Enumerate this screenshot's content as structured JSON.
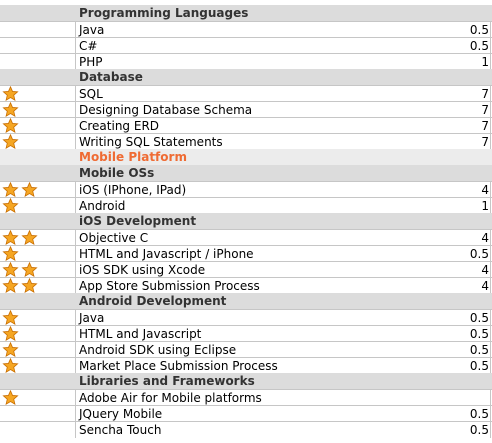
{
  "colors": {
    "section_bg": "#dcdcdc",
    "platform_bg": "#ececec",
    "platform_text": "#ef6b33",
    "star_fill": "#f5a623",
    "star_stroke": "#c96e00",
    "grid_line": "#c6c6c6"
  },
  "rows": [
    {
      "type": "section",
      "label": "Programming Languages",
      "value": "",
      "stars": 0
    },
    {
      "type": "item",
      "label": "Java",
      "value": "0.5",
      "stars": 0
    },
    {
      "type": "item",
      "label": "C#",
      "value": "0.5",
      "stars": 0
    },
    {
      "type": "item",
      "label": "PHP",
      "value": "1",
      "stars": 0
    },
    {
      "type": "section",
      "label": "Database",
      "value": "",
      "stars": 0
    },
    {
      "type": "item",
      "label": "SQL",
      "value": "7",
      "stars": 1
    },
    {
      "type": "item",
      "label": "Designing Database Schema",
      "value": "7",
      "stars": 1
    },
    {
      "type": "item",
      "label": "Creating ERD",
      "value": "7",
      "stars": 1
    },
    {
      "type": "item",
      "label": "Writing SQL Statements",
      "value": "7",
      "stars": 1
    },
    {
      "type": "platform",
      "label": "Mobile Platform",
      "value": "",
      "stars": 0
    },
    {
      "type": "section",
      "label": "Mobile OSs",
      "value": "",
      "stars": 0
    },
    {
      "type": "item",
      "label": "iOS (IPhone, IPad)",
      "value": "4",
      "stars": 2
    },
    {
      "type": "item",
      "label": "Android",
      "value": "1",
      "stars": 1
    },
    {
      "type": "section",
      "label": "iOS Development",
      "value": "",
      "stars": 0
    },
    {
      "type": "item",
      "label": "Objective C",
      "value": "4",
      "stars": 2
    },
    {
      "type": "item",
      "label": "HTML and Javascript / iPhone",
      "value": "0.5",
      "stars": 1
    },
    {
      "type": "item",
      "label": "iOS SDK using Xcode",
      "value": "4",
      "stars": 2
    },
    {
      "type": "item",
      "label": "App Store Submission Process",
      "value": "4",
      "stars": 2
    },
    {
      "type": "section",
      "label": "Android Development",
      "value": "",
      "stars": 0
    },
    {
      "type": "item",
      "label": "Java",
      "value": "0.5",
      "stars": 1
    },
    {
      "type": "item",
      "label": "HTML and Javascript",
      "value": "0.5",
      "stars": 1
    },
    {
      "type": "item",
      "label": "Android SDK using Eclipse",
      "value": "0.5",
      "stars": 1
    },
    {
      "type": "item",
      "label": "Market Place Submission Process",
      "value": "0.5",
      "stars": 1
    },
    {
      "type": "section",
      "label": "Libraries and Frameworks",
      "value": "",
      "stars": 0
    },
    {
      "type": "item",
      "label": "Adobe Air for Mobile platforms",
      "value": "",
      "stars": 1
    },
    {
      "type": "item",
      "label": "JQuery Mobile",
      "value": "0.5",
      "stars": 0
    },
    {
      "type": "item",
      "label": "Sencha Touch",
      "value": "0.5",
      "stars": 0
    }
  ]
}
